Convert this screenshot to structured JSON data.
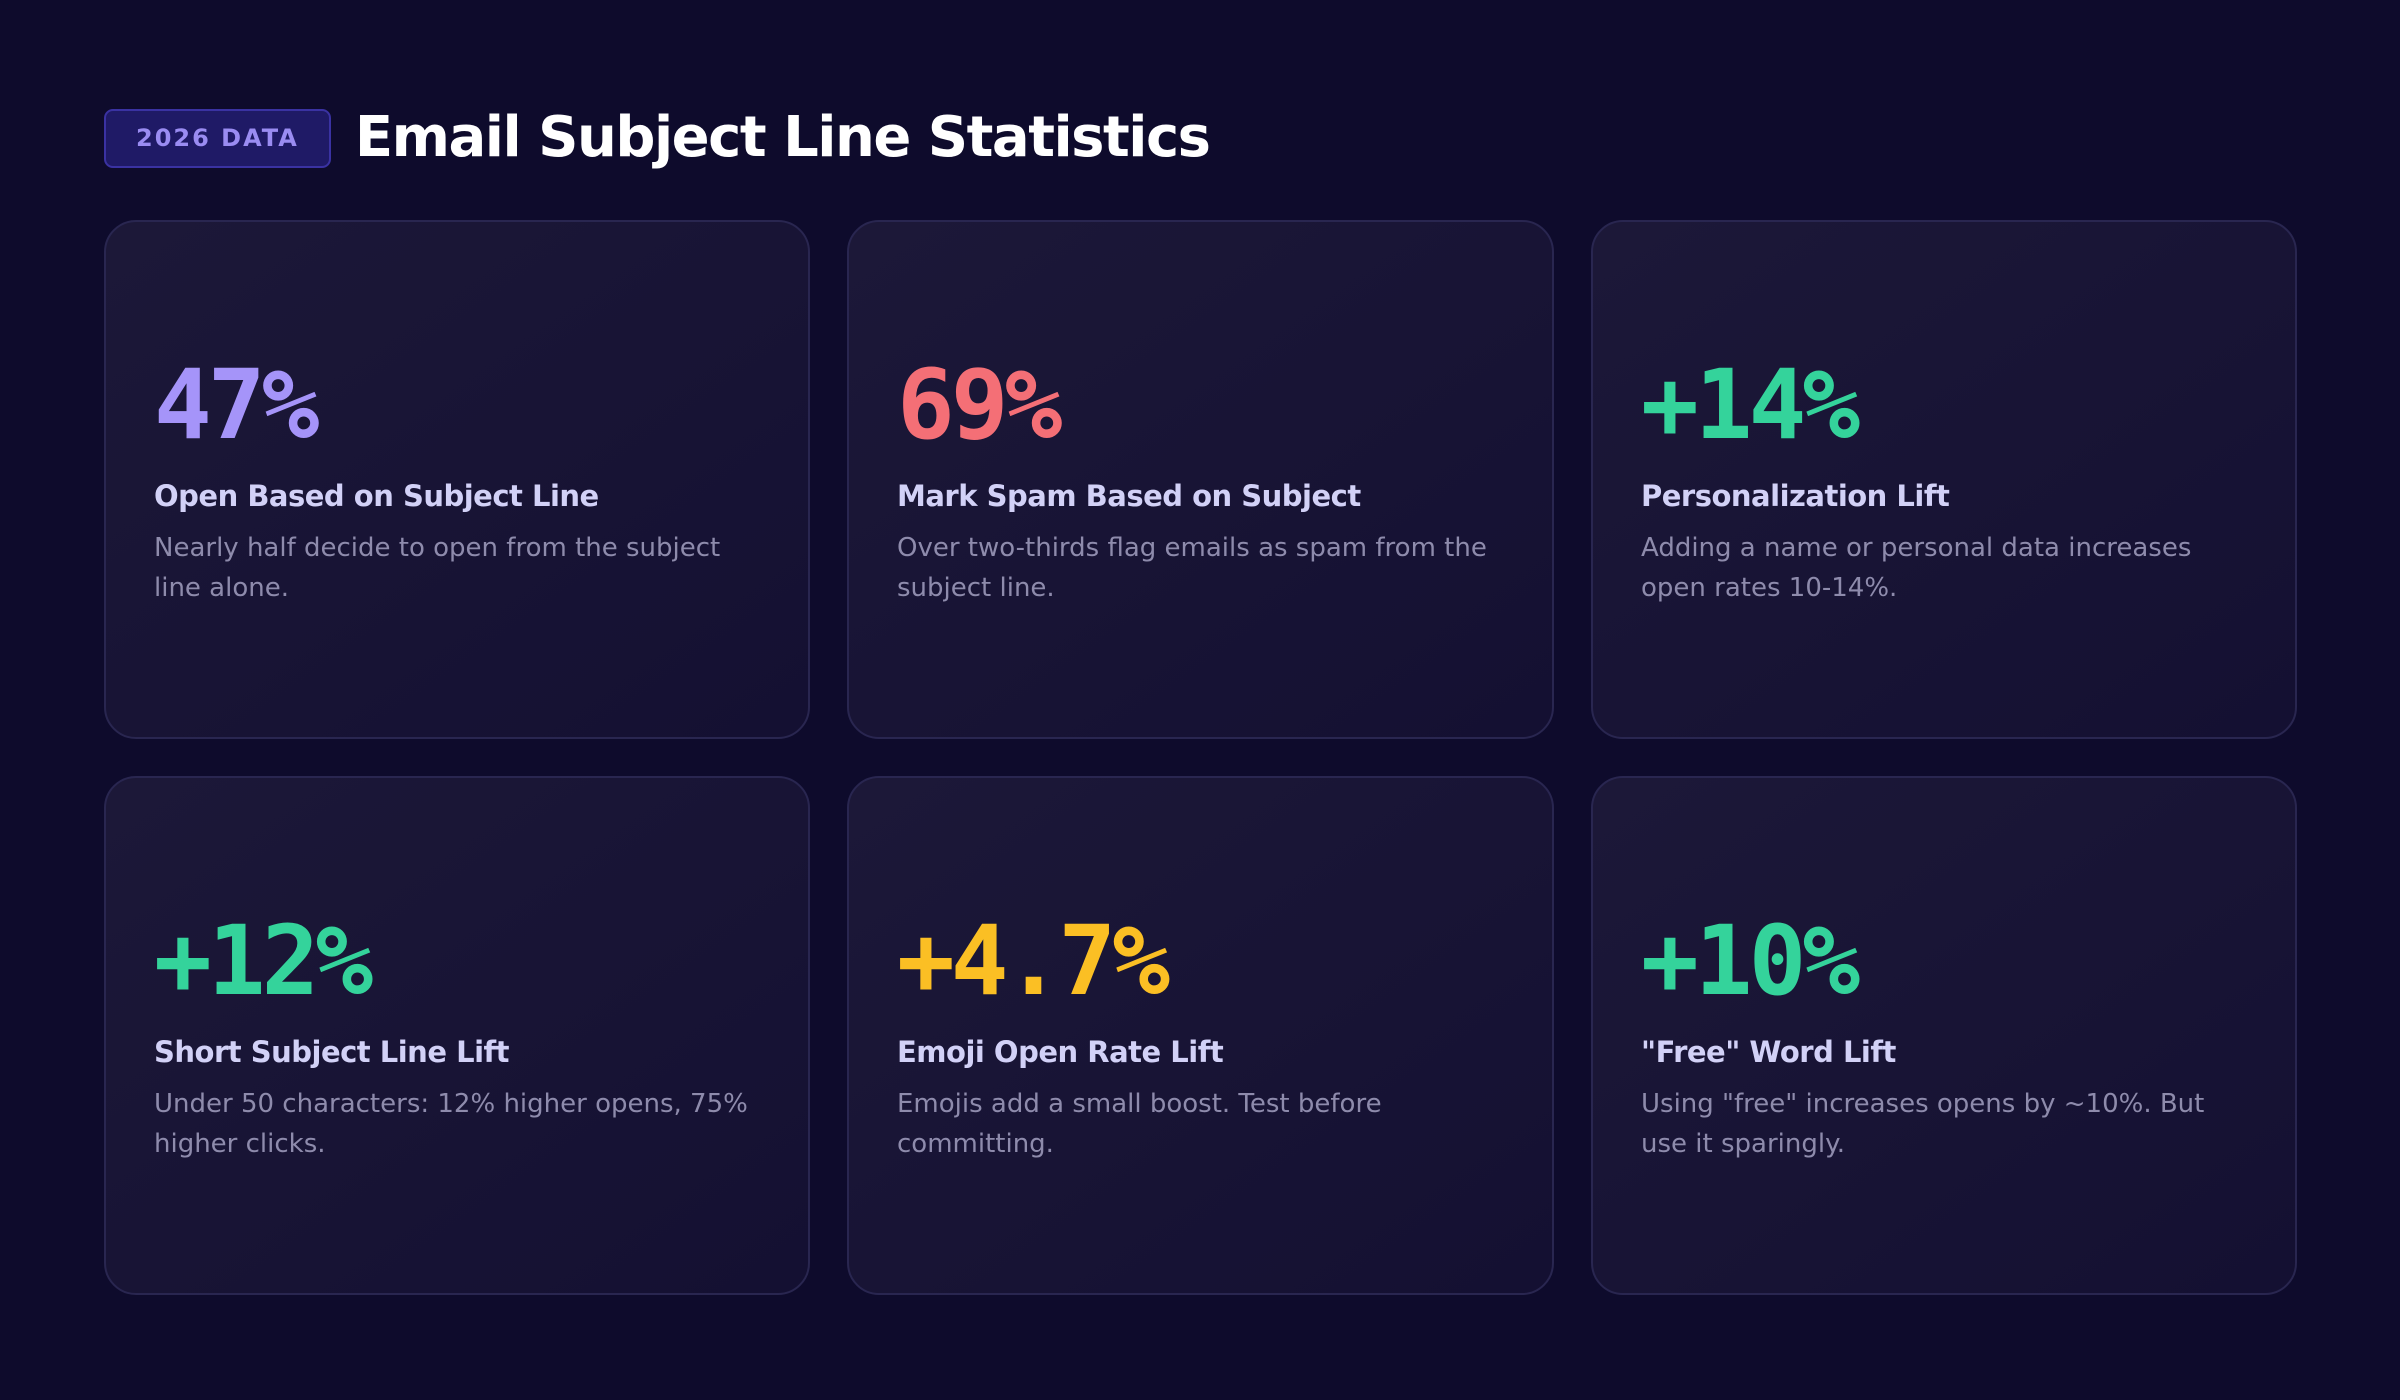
{
  "header": {
    "badge": "2026 DATA",
    "title": "Email Subject Line Statistics"
  },
  "cards": [
    {
      "value": "47%",
      "label": "Open Based on Subject Line",
      "description": "Nearly half decide to open from the subject line alone.",
      "color": "#a594f9"
    },
    {
      "value": "69%",
      "label": "Mark Spam Based on Subject",
      "description": "Over two-thirds flag emails as spam from the subject line.",
      "color": "#f46f76"
    },
    {
      "value": "+14%",
      "label": "Personalization Lift",
      "description": "Adding a name or personal data increases open rates 10-14%.",
      "color": "#34d39b"
    },
    {
      "value": "+12%",
      "label": "Short Subject Line Lift",
      "description": "Under 50 characters: 12% higher opens, 75% higher clicks.",
      "color": "#34d39b"
    },
    {
      "value": "+4.7%",
      "label": "Emoji Open Rate Lift",
      "description": "Emojis add a small boost. Test before committing.",
      "color": "#fbbf24"
    },
    {
      "value": "+10%",
      "label": "\"Free\" Word Lift",
      "description": "Using \"free\" increases opens by ~10%. But use it sparingly.",
      "color": "#34d39b"
    }
  ]
}
